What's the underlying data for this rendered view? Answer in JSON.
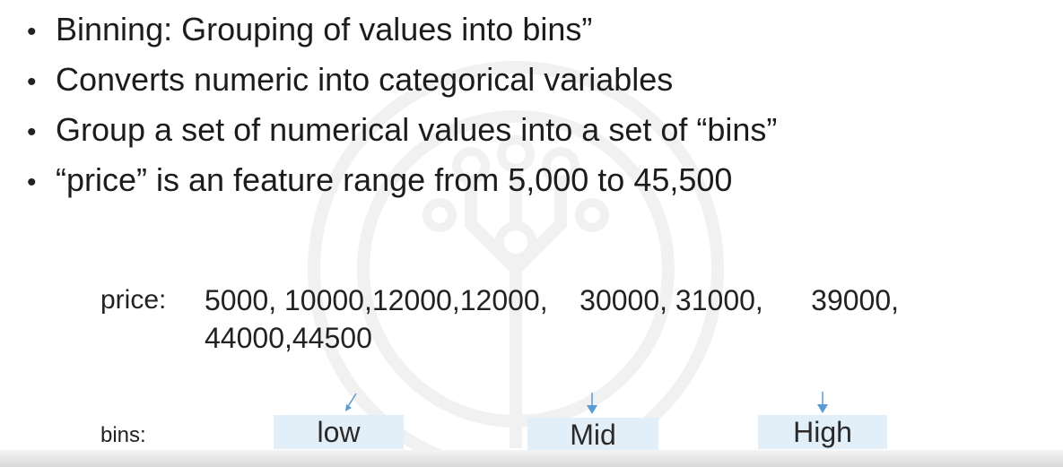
{
  "bullets": [
    "Binning: Grouping of values into bins”",
    "Converts numeric into categorical variables",
    "Group a set of numerical values into a set of “bins”",
    "“price” is an feature range from 5,000 to 45,500"
  ],
  "price": {
    "label": "price:",
    "values_line1": "5000, 10000,12000,12000,    30000, 31000,      39000,",
    "values_line2": "44000,44500"
  },
  "bins": {
    "label": "bins:",
    "items": [
      "low",
      "Mid",
      "High"
    ]
  },
  "colors": {
    "bin_fill": "#e2eef8",
    "arrow": "#5b9bd5",
    "watermark": "#f2f2f2"
  }
}
